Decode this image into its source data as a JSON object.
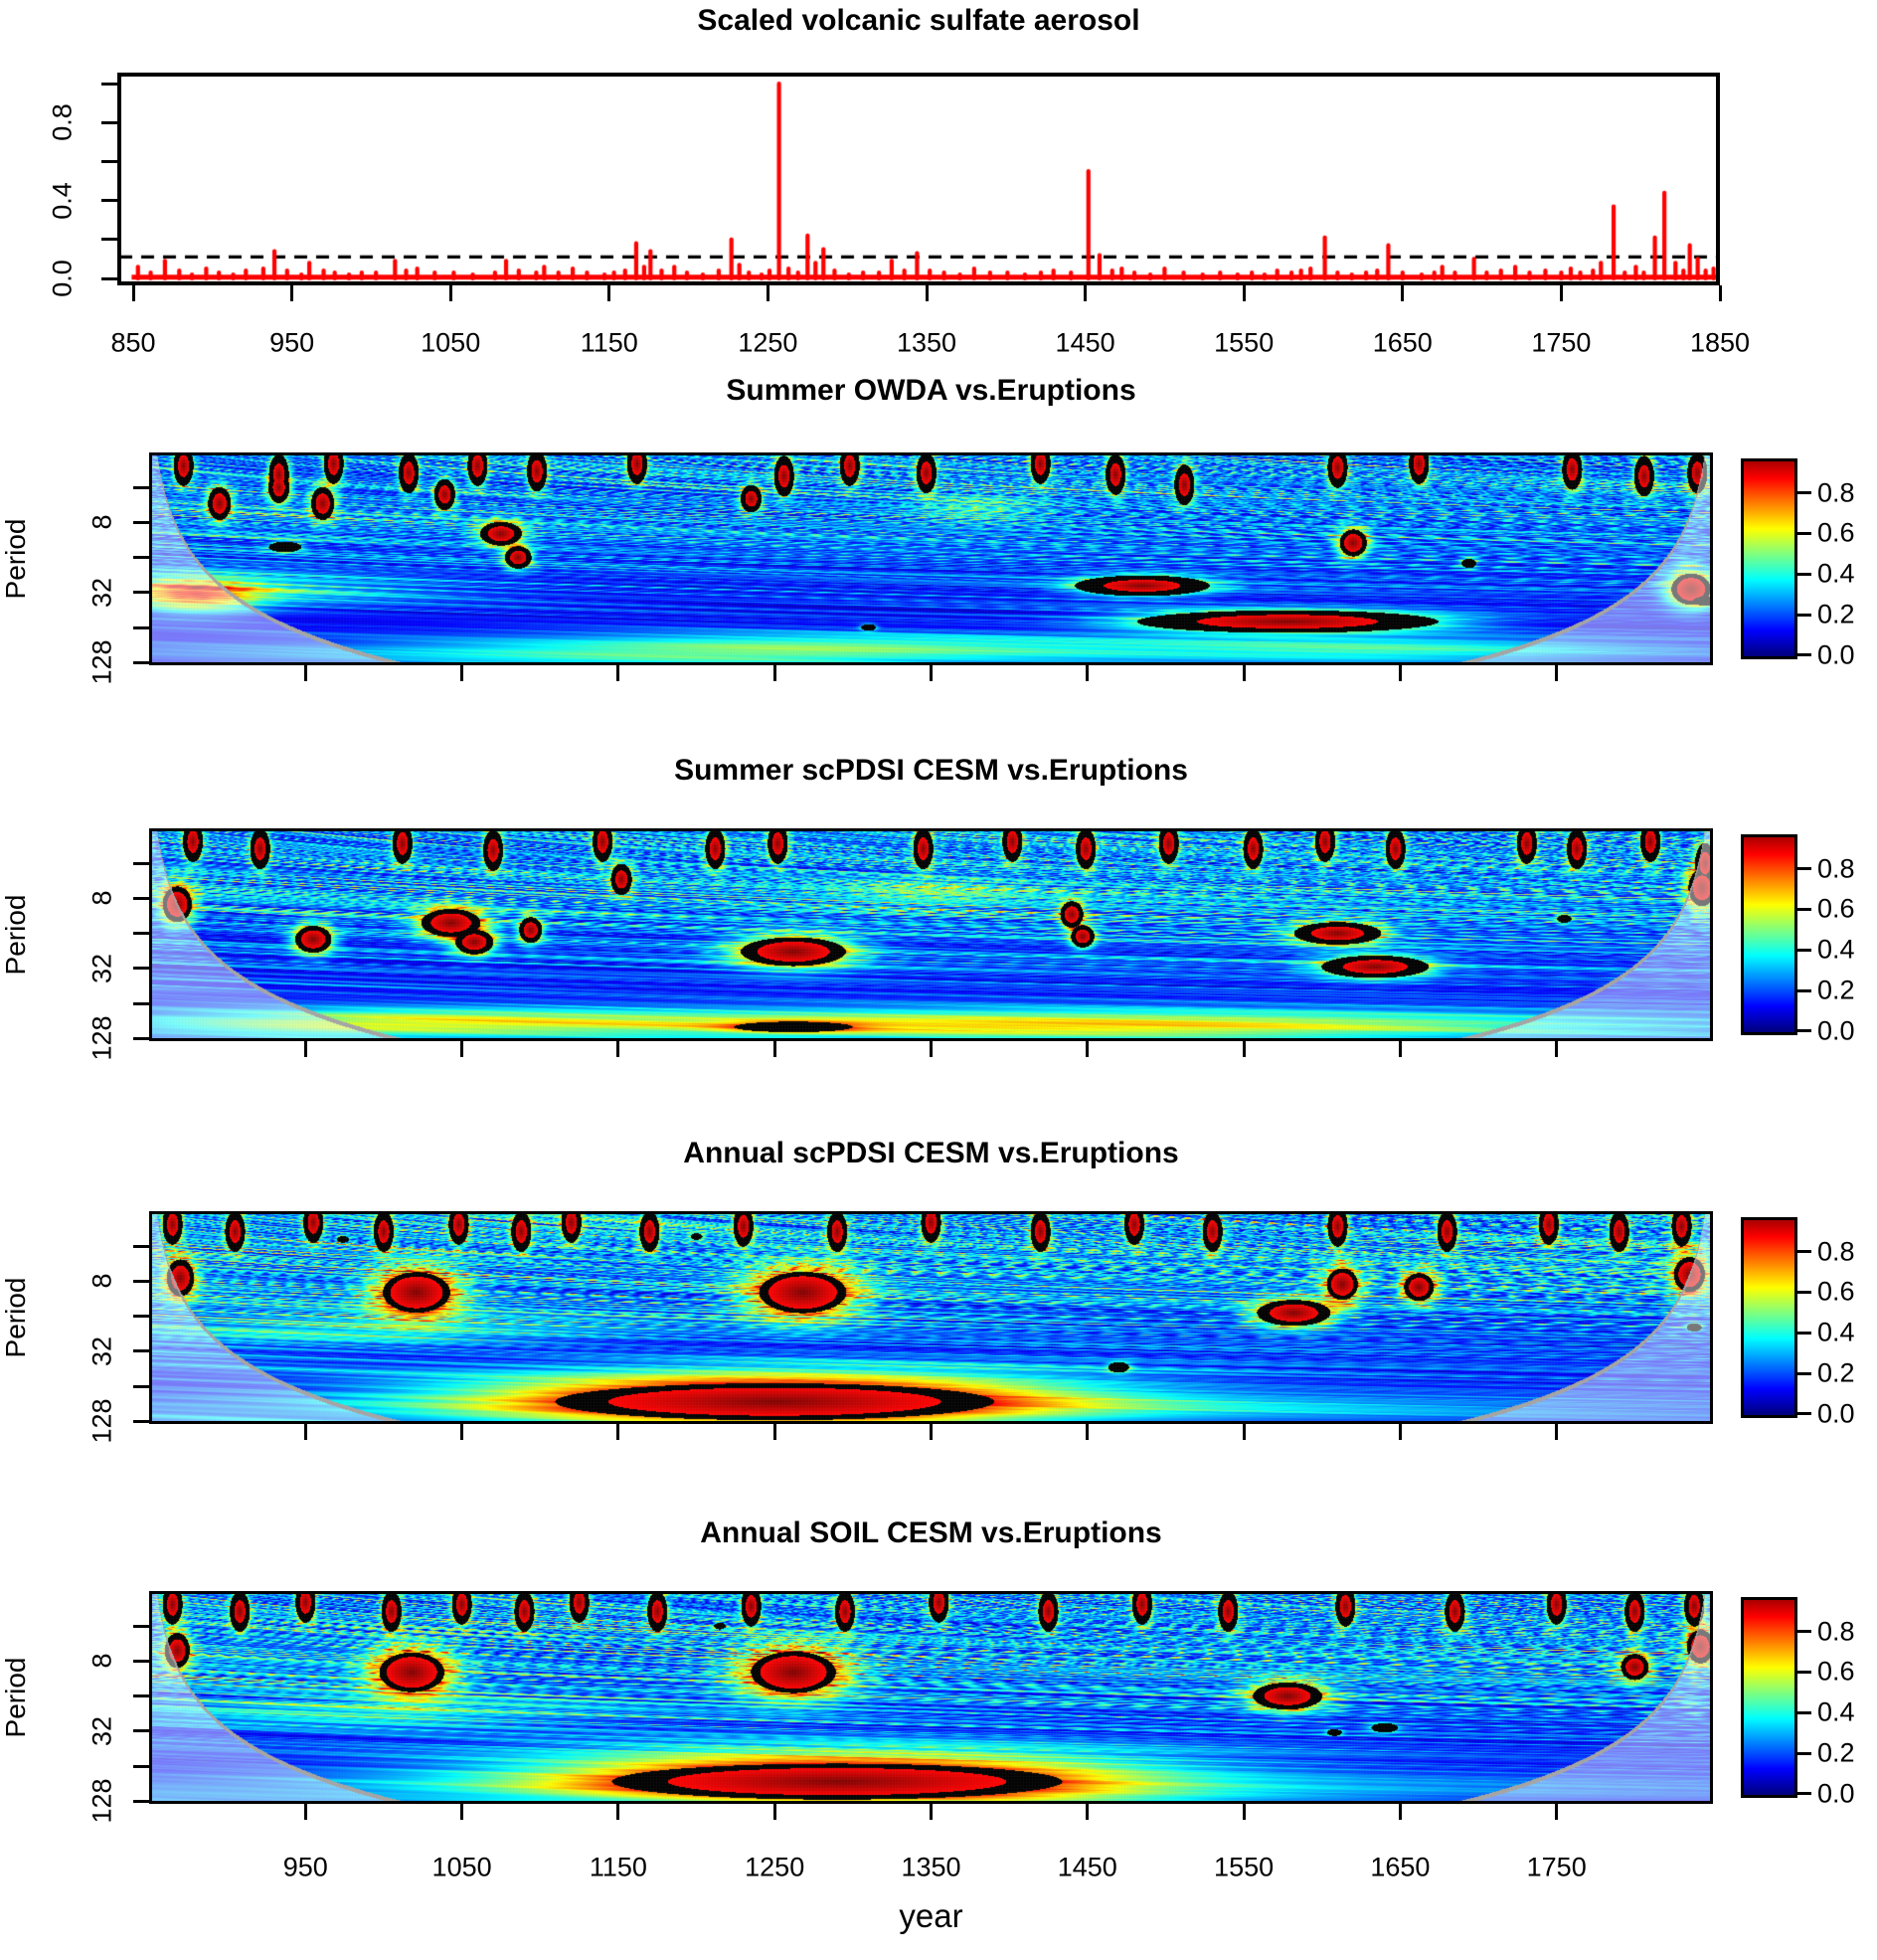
{
  "figure": {
    "background": "#ffffff",
    "text_color": "#000000"
  },
  "xlabel": "year",
  "wavelet_axes": {
    "xlim": [
      850,
      1850
    ],
    "x_tick_values": [
      950,
      1050,
      1150,
      1250,
      1350,
      1450,
      1550,
      1650,
      1750
    ],
    "x_tick_labels": [
      "950",
      "1050",
      "1150",
      "1250",
      "1350",
      "1450",
      "1550",
      "1650",
      "1750"
    ],
    "period_range": [
      2,
      137
    ],
    "period_tick_values": [
      4,
      8,
      16,
      32,
      64,
      128
    ],
    "period_labeled_ticks": [
      {
        "p": 8,
        "label": "8"
      },
      {
        "p": 32,
        "label": "32"
      },
      {
        "p": 128,
        "label": "128"
      }
    ],
    "colorbar": {
      "palette": "jet",
      "vmin": 0.0,
      "vmax": 1.0,
      "tick_values": [
        0.0,
        0.2,
        0.4,
        0.6,
        0.8
      ],
      "tick_labels": [
        "0.0",
        "0.2",
        "0.4",
        "0.6",
        "0.8"
      ]
    },
    "cone_of_influence": {
      "curve_color": "#a6a6a6",
      "shade": "rgba(255,255,255,0.47)"
    }
  },
  "chart_data": [
    {
      "id": "volcanic_sulfate",
      "type": "line",
      "title": "Scaled volcanic sulfate aerosol",
      "xlim": [
        840,
        1850
      ],
      "ylim": [
        0,
        1.04
      ],
      "x_tick_values": [
        850,
        950,
        1050,
        1150,
        1250,
        1350,
        1450,
        1550,
        1650,
        1750,
        1850
      ],
      "x_tick_labels": [
        "850",
        "950",
        "1050",
        "1150",
        "1250",
        "1350",
        "1450",
        "1550",
        "1650",
        "1750",
        "1850"
      ],
      "y_tick_values": [
        0,
        0.2,
        0.4,
        0.6,
        0.8,
        1.0
      ],
      "y_labeled_ticks": [
        {
          "v": 0,
          "label": "0.0"
        },
        {
          "v": 0.4,
          "label": "0.4"
        },
        {
          "v": 0.8,
          "label": "0.8"
        }
      ],
      "threshold_dashed": 0.11,
      "line_color": "#ff0000",
      "spikes": [
        [
          853,
          0.06
        ],
        [
          861,
          0.03
        ],
        [
          870,
          0.09
        ],
        [
          879,
          0.04
        ],
        [
          887,
          0.02
        ],
        [
          896,
          0.05
        ],
        [
          904,
          0.03
        ],
        [
          913,
          0.02
        ],
        [
          921,
          0.04
        ],
        [
          932,
          0.05
        ],
        [
          939,
          0.14
        ],
        [
          947,
          0.04
        ],
        [
          956,
          0.02
        ],
        [
          961,
          0.08
        ],
        [
          970,
          0.04
        ],
        [
          977,
          0.03
        ],
        [
          986,
          0.02
        ],
        [
          994,
          0.03
        ],
        [
          1003,
          0.03
        ],
        [
          1015,
          0.09
        ],
        [
          1022,
          0.04
        ],
        [
          1029,
          0.05
        ],
        [
          1040,
          0.03
        ],
        [
          1052,
          0.03
        ],
        [
          1064,
          0.02
        ],
        [
          1078,
          0.03
        ],
        [
          1085,
          0.09
        ],
        [
          1093,
          0.04
        ],
        [
          1104,
          0.03
        ],
        [
          1109,
          0.06
        ],
        [
          1118,
          0.03
        ],
        [
          1127,
          0.05
        ],
        [
          1136,
          0.03
        ],
        [
          1147,
          0.02
        ],
        [
          1153,
          0.03
        ],
        [
          1160,
          0.04
        ],
        [
          1167,
          0.18
        ],
        [
          1172,
          0.06
        ],
        [
          1176,
          0.14
        ],
        [
          1183,
          0.04
        ],
        [
          1191,
          0.06
        ],
        [
          1199,
          0.03
        ],
        [
          1209,
          0.02
        ],
        [
          1219,
          0.04
        ],
        [
          1227,
          0.2
        ],
        [
          1232,
          0.07
        ],
        [
          1238,
          0.03
        ],
        [
          1246,
          0.02
        ],
        [
          1251,
          0.04
        ],
        [
          1257,
          1.0
        ],
        [
          1263,
          0.05
        ],
        [
          1269,
          0.03
        ],
        [
          1275,
          0.22
        ],
        [
          1280,
          0.08
        ],
        [
          1285,
          0.15
        ],
        [
          1292,
          0.04
        ],
        [
          1301,
          0.02
        ],
        [
          1310,
          0.03
        ],
        [
          1320,
          0.03
        ],
        [
          1328,
          0.09
        ],
        [
          1336,
          0.04
        ],
        [
          1344,
          0.13
        ],
        [
          1352,
          0.04
        ],
        [
          1361,
          0.03
        ],
        [
          1371,
          0.02
        ],
        [
          1380,
          0.05
        ],
        [
          1390,
          0.03
        ],
        [
          1401,
          0.03
        ],
        [
          1412,
          0.02
        ],
        [
          1422,
          0.03
        ],
        [
          1430,
          0.04
        ],
        [
          1441,
          0.03
        ],
        [
          1452,
          0.55
        ],
        [
          1459,
          0.12
        ],
        [
          1467,
          0.04
        ],
        [
          1473,
          0.05
        ],
        [
          1481,
          0.03
        ],
        [
          1491,
          0.02
        ],
        [
          1500,
          0.05
        ],
        [
          1512,
          0.03
        ],
        [
          1524,
          0.02
        ],
        [
          1535,
          0.03
        ],
        [
          1546,
          0.02
        ],
        [
          1555,
          0.03
        ],
        [
          1563,
          0.02
        ],
        [
          1571,
          0.04
        ],
        [
          1580,
          0.03
        ],
        [
          1586,
          0.04
        ],
        [
          1592,
          0.05
        ],
        [
          1601,
          0.21
        ],
        [
          1609,
          0.03
        ],
        [
          1618,
          0.02
        ],
        [
          1627,
          0.03
        ],
        [
          1634,
          0.04
        ],
        [
          1641,
          0.17
        ],
        [
          1650,
          0.03
        ],
        [
          1662,
          0.02
        ],
        [
          1670,
          0.03
        ],
        [
          1675,
          0.06
        ],
        [
          1683,
          0.03
        ],
        [
          1695,
          0.1
        ],
        [
          1703,
          0.03
        ],
        [
          1712,
          0.04
        ],
        [
          1721,
          0.06
        ],
        [
          1730,
          0.03
        ],
        [
          1740,
          0.04
        ],
        [
          1750,
          0.03
        ],
        [
          1756,
          0.05
        ],
        [
          1762,
          0.03
        ],
        [
          1770,
          0.04
        ],
        [
          1775,
          0.08
        ],
        [
          1783,
          0.37
        ],
        [
          1790,
          0.03
        ],
        [
          1797,
          0.06
        ],
        [
          1802,
          0.03
        ],
        [
          1809,
          0.21
        ],
        [
          1815,
          0.44
        ],
        [
          1822,
          0.08
        ],
        [
          1827,
          0.04
        ],
        [
          1831,
          0.17
        ],
        [
          1836,
          0.1
        ],
        [
          1841,
          0.04
        ],
        [
          1846,
          0.05
        ]
      ]
    },
    {
      "id": "summer_owda",
      "type": "heatmap",
      "title": "Summer OWDA vs.Eruptions",
      "ylabel": "Period",
      "seed": 2,
      "noise_amp": 0.68,
      "bands": [
        {
          "period": 100,
          "amp": 0.2,
          "center_year": 1300,
          "span_years": 420
        },
        {
          "period": 30,
          "amp": 0.2,
          "center_year": 900,
          "span_years": 130
        }
      ],
      "significant_regions": [
        [
          895,
          5.5,
          7,
          0.45
        ],
        [
          933,
          4,
          6,
          0.4
        ],
        [
          961,
          5.5,
          7,
          0.45
        ],
        [
          1039,
          4.6,
          6,
          0.4
        ],
        [
          1075,
          10,
          13,
          0.33
        ],
        [
          1086,
          16,
          8,
          0.3
        ],
        [
          1235,
          5,
          6,
          0.35
        ],
        [
          1485,
          28,
          38,
          0.26
        ],
        [
          1578,
          57,
          90,
          0.3
        ],
        [
          1620,
          12,
          9,
          0.4
        ],
        [
          1836,
          30,
          14,
          0.5
        ]
      ],
      "soft_regions": [
        [
          880,
          34,
          40,
          0.5,
          0.5
        ],
        [
          1240,
          100,
          200,
          0.4,
          0.22
        ],
        [
          1650,
          100,
          160,
          0.4,
          0.2
        ],
        [
          1380,
          6,
          40,
          0.4,
          0.18
        ]
      ],
      "solid_black": [
        [
          937,
          13,
          11,
          0.16
        ],
        [
          1694,
          18,
          5,
          0.14
        ],
        [
          1310,
          64,
          5,
          0.1
        ],
        [
          1845,
          38,
          8,
          0.14
        ]
      ],
      "top_blobs": [
        [
          872,
          2.6
        ],
        [
          933,
          3.1
        ],
        [
          968,
          2.5
        ],
        [
          1016,
          3
        ],
        [
          1060,
          2.6
        ],
        [
          1098,
          2.9
        ],
        [
          1162,
          2.5
        ],
        [
          1256,
          3.2
        ],
        [
          1298,
          2.6
        ],
        [
          1347,
          3
        ],
        [
          1420,
          2.5
        ],
        [
          1468,
          3.1
        ],
        [
          1512,
          3.8
        ],
        [
          1610,
          2.7
        ],
        [
          1662,
          2.5
        ],
        [
          1760,
          2.8
        ],
        [
          1806,
          3.2
        ],
        [
          1840,
          3
        ]
      ]
    },
    {
      "id": "summer_scpdsi_cesm",
      "type": "heatmap",
      "title": "Summer scPDSI CESM vs.Eruptions",
      "ylabel": "Period",
      "seed": 7,
      "noise_amp": 0.72,
      "bands": [
        {
          "period": 95,
          "amp": 0.32,
          "center_year": 1280,
          "span_years": 470
        }
      ],
      "significant_regions": [
        [
          868,
          9,
          10,
          0.55
        ],
        [
          955,
          18,
          12,
          0.4
        ],
        [
          1043,
          13,
          20,
          0.42
        ],
        [
          1058,
          19,
          12,
          0.35
        ],
        [
          1094,
          15,
          7,
          0.35
        ],
        [
          1152,
          5.5,
          6,
          0.4
        ],
        [
          1262,
          23,
          36,
          0.44
        ],
        [
          1440,
          11,
          7,
          0.36
        ],
        [
          1447,
          17,
          7,
          0.3
        ],
        [
          1610,
          16,
          26,
          0.3
        ],
        [
          1634,
          31,
          32,
          0.3
        ],
        [
          1843,
          6.5,
          9,
          0.55
        ]
      ],
      "soft_regions": [
        [
          1500,
          100,
          330,
          0.4,
          0.28
        ],
        [
          1000,
          95,
          150,
          0.4,
          0.26
        ],
        [
          1350,
          7,
          60,
          0.45,
          0.15
        ]
      ],
      "solid_black": [
        [
          1262,
          102,
          40,
          0.16
        ],
        [
          1755,
          12,
          5,
          0.12
        ]
      ],
      "top_blobs": [
        [
          878,
          2.6
        ],
        [
          921,
          3
        ],
        [
          1012,
          2.7
        ],
        [
          1070,
          3.1
        ],
        [
          1140,
          2.6
        ],
        [
          1212,
          3
        ],
        [
          1252,
          2.7
        ],
        [
          1345,
          3
        ],
        [
          1402,
          2.6
        ],
        [
          1449,
          3
        ],
        [
          1502,
          2.7
        ],
        [
          1556,
          3
        ],
        [
          1602,
          2.6
        ],
        [
          1647,
          3
        ],
        [
          1731,
          2.7
        ],
        [
          1763,
          3
        ],
        [
          1810,
          2.6
        ],
        [
          1845,
          4
        ]
      ]
    },
    {
      "id": "annual_scpdsi_cesm",
      "type": "heatmap",
      "title": "Annual scPDSI CESM vs.Eruptions",
      "ylabel": "Period",
      "seed": 13,
      "noise_amp": 0.78,
      "bands": [
        {
          "period": 100,
          "amp": 0.26,
          "center_year": 1300,
          "span_years": 500
        }
      ],
      "significant_regions": [
        [
          870,
          7.5,
          9,
          0.55
        ],
        [
          1021,
          10,
          26,
          0.7
        ],
        [
          1268,
          10,
          34,
          0.72
        ],
        [
          1582,
          15,
          24,
          0.38
        ],
        [
          1613,
          8.5,
          11,
          0.5
        ],
        [
          1662,
          9,
          10,
          0.42
        ],
        [
          1835,
          7,
          11,
          0.55
        ],
        [
          1250,
          87,
          165,
          0.62
        ]
      ],
      "soft_regions": [
        [
          1250,
          55,
          230,
          0.55,
          0.25
        ],
        [
          980,
          22,
          160,
          0.45,
          0.2
        ]
      ],
      "solid_black": [
        [
          974,
          3.5,
          4,
          0.1
        ],
        [
          1200,
          3.3,
          4,
          0.1
        ],
        [
          1470,
          44,
          7,
          0.16
        ],
        [
          1838,
          20,
          5,
          0.12
        ]
      ],
      "top_blobs": [
        [
          865,
          2.6
        ],
        [
          905,
          3
        ],
        [
          955,
          2.5
        ],
        [
          1000,
          3
        ],
        [
          1048,
          2.6
        ],
        [
          1088,
          3
        ],
        [
          1120,
          2.5
        ],
        [
          1170,
          3
        ],
        [
          1230,
          2.7
        ],
        [
          1290,
          3
        ],
        [
          1350,
          2.5
        ],
        [
          1420,
          3
        ],
        [
          1480,
          2.6
        ],
        [
          1530,
          3
        ],
        [
          1610,
          2.7
        ],
        [
          1680,
          3
        ],
        [
          1745,
          2.6
        ],
        [
          1790,
          3
        ],
        [
          1830,
          2.7
        ]
      ]
    },
    {
      "id": "annual_soil_cesm",
      "type": "heatmap",
      "title": "Annual SOIL CESM vs.Eruptions",
      "ylabel": "Period",
      "seed": 21,
      "noise_amp": 0.78,
      "bands": [
        {
          "period": 100,
          "amp": 0.26,
          "center_year": 1300,
          "span_years": 520
        }
      ],
      "significant_regions": [
        [
          868,
          6.5,
          8,
          0.5
        ],
        [
          1018,
          10,
          25,
          0.68
        ],
        [
          1262,
          10,
          33,
          0.72
        ],
        [
          1578,
          16,
          23,
          0.4
        ],
        [
          1800,
          9,
          9,
          0.38
        ],
        [
          1842,
          6,
          9,
          0.5
        ],
        [
          1290,
          87,
          168,
          0.6
        ]
      ],
      "soft_regions": [
        [
          1280,
          55,
          240,
          0.55,
          0.25
        ],
        [
          990,
          22,
          150,
          0.45,
          0.2
        ]
      ],
      "solid_black": [
        [
          1640,
          30,
          9,
          0.14
        ],
        [
          1608,
          33,
          5,
          0.1
        ],
        [
          1215,
          4,
          4,
          0.1
        ]
      ],
      "top_blobs": [
        [
          865,
          2.6
        ],
        [
          908,
          3
        ],
        [
          950,
          2.5
        ],
        [
          1005,
          3
        ],
        [
          1050,
          2.6
        ],
        [
          1090,
          3
        ],
        [
          1125,
          2.5
        ],
        [
          1175,
          3
        ],
        [
          1235,
          2.7
        ],
        [
          1295,
          3
        ],
        [
          1355,
          2.5
        ],
        [
          1425,
          3
        ],
        [
          1485,
          2.6
        ],
        [
          1540,
          3
        ],
        [
          1615,
          2.7
        ],
        [
          1685,
          3
        ],
        [
          1750,
          2.6
        ],
        [
          1800,
          3
        ],
        [
          1838,
          2.7
        ]
      ]
    }
  ]
}
